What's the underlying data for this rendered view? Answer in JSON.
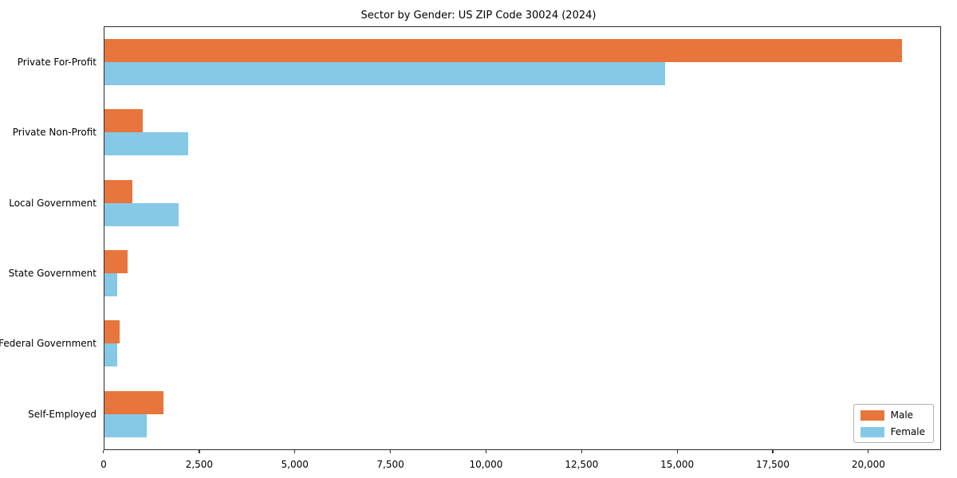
{
  "chart_data": {
    "type": "bar",
    "orientation": "horizontal",
    "title": "Sector by Gender: US ZIP Code 30024 (2024)",
    "categories": [
      "Private For-Profit",
      "Private Non-Profit",
      "Local Government",
      "State Government",
      "Federal Government",
      "Self-Employed"
    ],
    "series": [
      {
        "name": "Male",
        "color": "#e8753c",
        "values": [
          20900,
          1000,
          730,
          600,
          400,
          1550
        ]
      },
      {
        "name": "Female",
        "color": "#85c9e6",
        "values": [
          14700,
          2200,
          1950,
          330,
          330,
          1100
        ]
      }
    ],
    "xlim": [
      0,
      21900
    ],
    "xticks": [
      0,
      2500,
      5000,
      7500,
      10000,
      12500,
      15000,
      17500,
      20000
    ],
    "xtick_labels": [
      "0",
      "2,500",
      "5,000",
      "7,500",
      "10,000",
      "12,500",
      "15,000",
      "17,500",
      "20,000"
    ],
    "grid": false,
    "legend_position": "lower right",
    "axis_border_color": "#2b2b2b",
    "background_color": "#ffffff"
  }
}
